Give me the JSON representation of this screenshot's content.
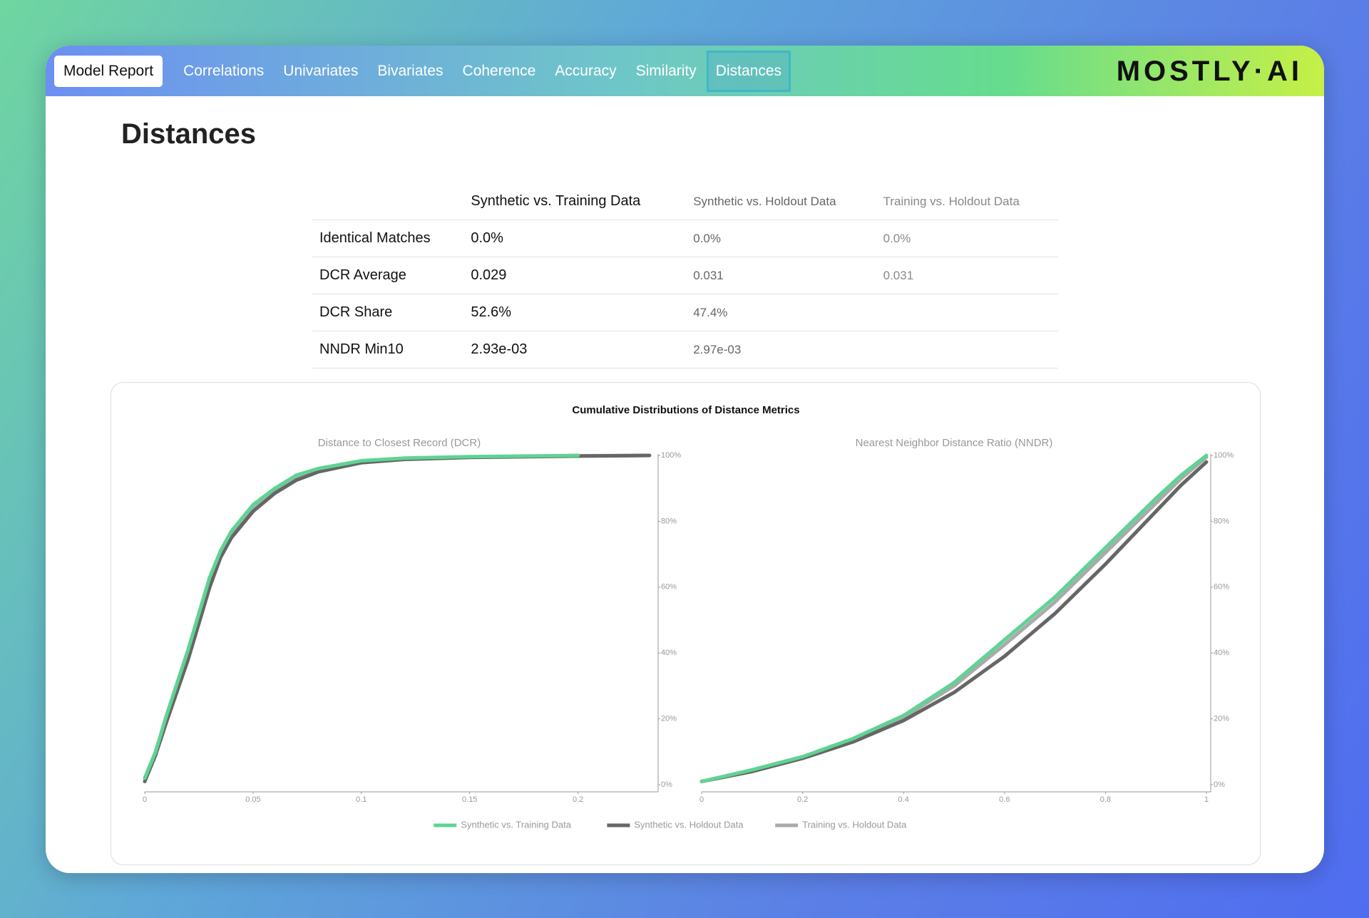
{
  "nav": {
    "items": [
      "Model Report",
      "Correlations",
      "Univariates",
      "Bivariates",
      "Coherence",
      "Accuracy",
      "Similarity",
      "Distances"
    ],
    "brand": "MOSTLY·AI"
  },
  "heading": "Distances",
  "table": {
    "columns": [
      "Synthetic vs. Training Data",
      "Synthetic vs. Holdout Data",
      "Training vs. Holdout Data"
    ],
    "rows": [
      [
        "Identical Matches",
        "0.0%",
        "0.0%",
        "0.0%"
      ],
      [
        "DCR Average",
        "0.029",
        "0.031",
        "0.031"
      ],
      [
        "DCR Share",
        "52.6%",
        "47.4%"
      ],
      [
        "NNDR Min10",
        "2.93e-03",
        "2.97e-03"
      ]
    ]
  },
  "panel_title": "Cumulative Distributions of Distance Metrics",
  "chart_data": [
    {
      "type": "line",
      "title": "Distance to Closest Record (DCR)",
      "x": [
        0,
        0.005,
        0.01,
        0.02,
        0.03,
        0.035,
        0.04,
        0.05,
        0.06,
        0.07,
        0.08,
        0.1,
        0.12,
        0.15,
        0.2,
        0.233
      ],
      "series": [
        {
          "name": "Synthetic vs. Training Data",
          "color": "#5fd393",
          "values": [
            2,
            10,
            21,
            41,
            63,
            71,
            77,
            85,
            90,
            94,
            96,
            98.4,
            99.2,
            99.6,
            100,
            null
          ]
        },
        {
          "name": "Synthetic vs. Holdout Data",
          "color": "#666666",
          "values": [
            1,
            9,
            19,
            38,
            60,
            69,
            75,
            83,
            88.5,
            92.5,
            95,
            97.8,
            98.8,
            99.4,
            99.8,
            100
          ]
        },
        {
          "name": "Training vs. Holdout Data",
          "color": "#aaaaaa",
          "values": [
            2,
            10,
            20.5,
            40,
            62,
            70,
            76,
            84,
            89.5,
            93.5,
            95.5,
            98.2,
            99,
            99.5,
            99.9,
            100
          ]
        }
      ],
      "xlim": [
        0,
        0.235
      ],
      "xticks": [
        0,
        0.05,
        0.1,
        0.15,
        0.2
      ],
      "ylim": [
        0,
        100
      ],
      "yticks": [
        {
          "value": 0,
          "label": "0%"
        },
        {
          "value": 20,
          "label": "20%"
        },
        {
          "value": 40,
          "label": "40%"
        },
        {
          "value": 60,
          "label": "60%"
        },
        {
          "value": 80,
          "label": "80%"
        },
        {
          "value": 100,
          "label": "100%"
        }
      ],
      "y_axis_side": "right"
    },
    {
      "type": "line",
      "title": "Nearest Neighbor Distance Ratio (NNDR)",
      "x": [
        0,
        0.1,
        0.2,
        0.3,
        0.4,
        0.5,
        0.6,
        0.7,
        0.8,
        0.9,
        0.95,
        1
      ],
      "series": [
        {
          "name": "Synthetic vs. Training Data",
          "color": "#5fd393",
          "values": [
            1,
            4.5,
            8.5,
            14,
            21,
            31,
            44,
            57,
            72,
            87,
            94,
            100
          ]
        },
        {
          "name": "Synthetic vs. Holdout Data",
          "color": "#666666",
          "values": [
            1,
            4,
            8,
            13,
            19.5,
            28,
            39,
            52,
            67,
            83,
            91,
            98
          ]
        },
        {
          "name": "Training vs. Holdout Data",
          "color": "#aaaaaa",
          "values": [
            1,
            4.3,
            8.3,
            13.6,
            20.5,
            30,
            42.5,
            55.5,
            70.5,
            85.5,
            93,
            99.5
          ]
        }
      ],
      "xlim": [
        0,
        1
      ],
      "xticks": [
        0,
        0.2,
        0.4,
        0.6,
        0.8,
        1
      ],
      "ylim": [
        0,
        100
      ],
      "yticks": [
        {
          "value": 0,
          "label": "0%"
        },
        {
          "value": 20,
          "label": "20%"
        },
        {
          "value": 40,
          "label": "40%"
        },
        {
          "value": 60,
          "label": "60%"
        },
        {
          "value": 80,
          "label": "80%"
        },
        {
          "value": 100,
          "label": "100%"
        }
      ],
      "y_axis_side": "right"
    }
  ]
}
